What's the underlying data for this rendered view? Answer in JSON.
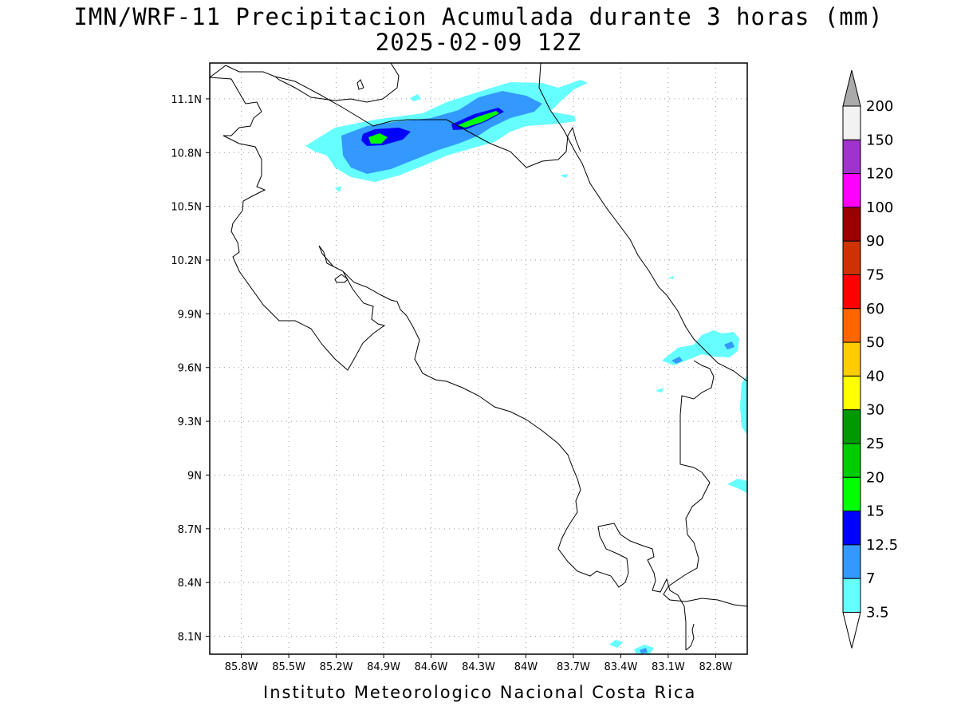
{
  "title": "IMN/WRF-11 Precipitacion Acumulada durante 3 horas (mm)",
  "subtitle": "2025-02-09 12Z",
  "footer": "Instituto Meteorologico Nacional Costa Rica",
  "map": {
    "lon_range": [
      -86.0,
      -82.6
    ],
    "lat_range": [
      8.0,
      11.3
    ],
    "lon_ticks": [
      "85.8W",
      "85.5W",
      "85.2W",
      "84.9W",
      "84.6W",
      "84.3W",
      "84W",
      "83.7W",
      "83.4W",
      "83.1W",
      "82.8W"
    ],
    "lat_ticks": [
      "11.1N",
      "10.8N",
      "10.5N",
      "10.2N",
      "9.9N",
      "9.6N",
      "9.3N",
      "9N",
      "8.7N",
      "8.4N",
      "8.1N"
    ],
    "grid": "dotted"
  },
  "colorbar": {
    "labels": [
      "200",
      "150",
      "120",
      "100",
      "90",
      "75",
      "60",
      "50",
      "40",
      "30",
      "25",
      "20",
      "15",
      "12.5",
      "7",
      "3.5"
    ],
    "colors": [
      "#aaaaaa",
      "#f2f2f2",
      "#a033cc",
      "#ff00ff",
      "#990000",
      "#cc3300",
      "#ff0000",
      "#ff6600",
      "#ffcc00",
      "#ffff00",
      "#009900",
      "#00cc00",
      "#00ff00",
      "#0000ff",
      "#3399ff",
      "#66ffff"
    ]
  }
}
